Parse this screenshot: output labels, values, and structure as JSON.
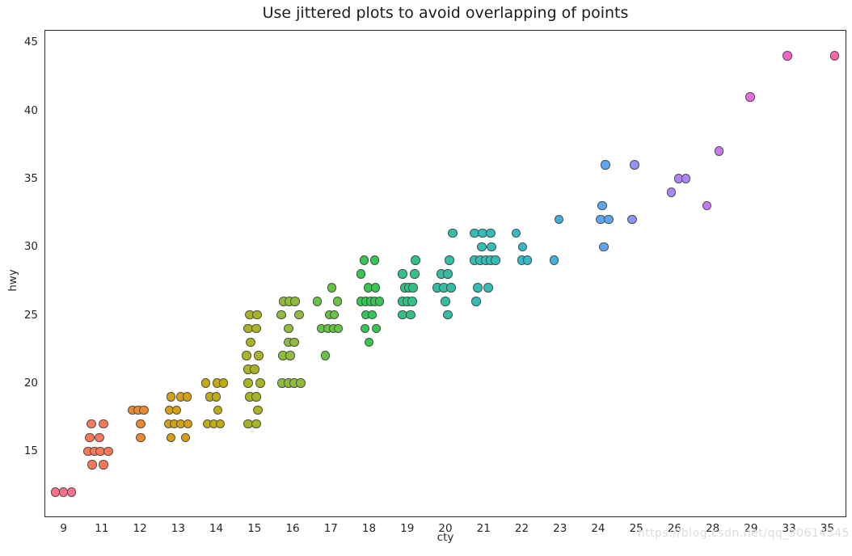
{
  "chart": {
    "title": "Use jittered plots to avoid overlapping of points",
    "xlabel": "cty",
    "ylabel": "hwy",
    "watermark": "https://blog.csdn.net/qq_30614345"
  },
  "chart_data": {
    "type": "scatter",
    "variant": "jittered-stripplot",
    "title": "Use jittered plots to avoid overlapping of points",
    "xlabel": "cty",
    "ylabel": "hwy",
    "x_categories": [
      9,
      11,
      12,
      13,
      14,
      15,
      16,
      17,
      18,
      19,
      20,
      21,
      22,
      23,
      24,
      25,
      26,
      28,
      29,
      33,
      35
    ],
    "y_ticks": [
      15,
      20,
      25,
      30,
      35,
      40,
      45
    ],
    "ylim": [
      10.1,
      45.9
    ],
    "grid": false,
    "legend": false,
    "point_note": "each point is [hwy_value, jitter_offset_px_from_category_center]",
    "series": [
      {
        "cty": 9,
        "color": "#f77189",
        "pts": [
          [
            12,
            -10
          ],
          [
            12,
            0
          ],
          [
            12,
            10
          ]
        ]
      },
      {
        "cty": 11,
        "color": "#f7795c",
        "pts": [
          [
            17,
            -13
          ],
          [
            17,
            2
          ],
          [
            16,
            -15
          ],
          [
            16,
            -3
          ],
          [
            15,
            -17
          ],
          [
            15,
            -9
          ],
          [
            15,
            -2
          ],
          [
            15,
            8
          ],
          [
            14,
            -12
          ],
          [
            14,
            2
          ]
        ]
      },
      {
        "cty": 12,
        "color": "#e78a31",
        "pts": [
          [
            18,
            -9
          ],
          [
            18,
            -2
          ],
          [
            18,
            5
          ],
          [
            17,
            1
          ],
          [
            16,
            1
          ]
        ]
      },
      {
        "cty": 13,
        "color": "#d3a118",
        "pts": [
          [
            19,
            -9
          ],
          [
            19,
            3
          ],
          [
            19,
            11
          ],
          [
            18,
            -11
          ],
          [
            18,
            -2
          ],
          [
            17,
            -12
          ],
          [
            17,
            -5
          ],
          [
            17,
            3
          ],
          [
            17,
            12
          ],
          [
            16,
            -9
          ],
          [
            16,
            9
          ]
        ]
      },
      {
        "cty": 14,
        "color": "#c0ab16",
        "pts": [
          [
            20,
            -13
          ],
          [
            20,
            1
          ],
          [
            20,
            9
          ],
          [
            19,
            -8
          ],
          [
            19,
            0
          ],
          [
            18,
            2
          ],
          [
            17,
            -11
          ],
          [
            17,
            -3
          ],
          [
            17,
            5
          ]
        ]
      },
      {
        "cty": 15,
        "color": "#aab327",
        "pts": [
          [
            25,
            -6
          ],
          [
            25,
            3
          ],
          [
            24,
            -8
          ],
          [
            24,
            2
          ],
          [
            23,
            -5
          ],
          [
            22,
            -10
          ],
          [
            22,
            5
          ],
          [
            21,
            -8
          ],
          [
            21,
            0
          ],
          [
            20,
            -8
          ],
          [
            20,
            7
          ],
          [
            19,
            -6
          ],
          [
            19,
            2
          ],
          [
            18,
            4
          ],
          [
            17,
            -8
          ],
          [
            17,
            2
          ]
        ]
      },
      {
        "cty": 16,
        "color": "#91bb3e",
        "pts": [
          [
            26,
            -11
          ],
          [
            26,
            -4
          ],
          [
            26,
            3
          ],
          [
            25,
            -14
          ],
          [
            25,
            8
          ],
          [
            24,
            -5
          ],
          [
            23,
            -5
          ],
          [
            23,
            2
          ],
          [
            22,
            -12
          ],
          [
            22,
            -3
          ],
          [
            20,
            -13
          ],
          [
            20,
            -5
          ],
          [
            20,
            2
          ],
          [
            20,
            10
          ]
        ]
      },
      {
        "cty": 17,
        "color": "#68c244",
        "pts": [
          [
            27,
            1
          ],
          [
            26,
            -17
          ],
          [
            26,
            8
          ],
          [
            25,
            -2
          ],
          [
            25,
            4
          ],
          [
            24,
            -12
          ],
          [
            24,
            -4
          ],
          [
            24,
            3
          ],
          [
            24,
            9
          ],
          [
            22,
            -7
          ]
        ]
      },
      {
        "cty": 18,
        "color": "#38c556",
        "pts": [
          [
            29,
            -6
          ],
          [
            29,
            7
          ],
          [
            28,
            -10
          ],
          [
            27,
            -1
          ],
          [
            27,
            8
          ],
          [
            26,
            -10
          ],
          [
            26,
            -4
          ],
          [
            26,
            2
          ],
          [
            26,
            7
          ],
          [
            26,
            13
          ],
          [
            25,
            -4
          ],
          [
            25,
            4
          ],
          [
            24,
            -5
          ],
          [
            24,
            9
          ],
          [
            23,
            0
          ]
        ]
      },
      {
        "cty": 19,
        "color": "#33c186",
        "pts": [
          [
            29,
            10
          ],
          [
            28,
            -6
          ],
          [
            28,
            9
          ],
          [
            27,
            -3
          ],
          [
            27,
            2
          ],
          [
            27,
            7
          ],
          [
            26,
            -6
          ],
          [
            26,
            0
          ],
          [
            26,
            6
          ],
          [
            25,
            -6
          ],
          [
            25,
            4
          ]
        ]
      },
      {
        "cty": 20,
        "color": "#34bda2",
        "pts": [
          [
            31,
            9
          ],
          [
            29,
            5
          ],
          [
            28,
            -5
          ],
          [
            28,
            3
          ],
          [
            27,
            -10
          ],
          [
            27,
            -2
          ],
          [
            27,
            7
          ],
          [
            26,
            0
          ],
          [
            25,
            3
          ]
        ]
      },
      {
        "cty": 21,
        "color": "#35bcb4",
        "pts": [
          [
            31,
            -11
          ],
          [
            31,
            -1
          ],
          [
            31,
            9
          ],
          [
            30,
            -2
          ],
          [
            30,
            10
          ],
          [
            29,
            -11
          ],
          [
            29,
            -4
          ],
          [
            29,
            3
          ],
          [
            29,
            9
          ],
          [
            29,
            15
          ],
          [
            27,
            -7
          ],
          [
            27,
            6
          ],
          [
            26,
            -9
          ]
        ]
      },
      {
        "cty": 22,
        "color": "#38b9c5",
        "pts": [
          [
            31,
            -7
          ],
          [
            30,
            1
          ],
          [
            29,
            0
          ],
          [
            29,
            7
          ]
        ]
      },
      {
        "cty": 23,
        "color": "#41b1dc",
        "pts": [
          [
            32,
            -1
          ],
          [
            29,
            -7
          ]
        ]
      },
      {
        "cty": 24,
        "color": "#5ea5f2",
        "pts": [
          [
            36,
            9
          ],
          [
            33,
            5
          ],
          [
            32,
            3
          ],
          [
            32,
            13
          ],
          [
            30,
            7
          ]
        ]
      },
      {
        "cty": 25,
        "color": "#8f93f3",
        "pts": [
          [
            36,
            -2
          ],
          [
            32,
            -5
          ]
        ]
      },
      {
        "cty": 26,
        "color": "#ac85f2",
        "pts": [
          [
            35,
            5
          ],
          [
            35,
            14
          ],
          [
            34,
            -4
          ]
        ]
      },
      {
        "cty": 28,
        "color": "#c67bf0",
        "pts": [
          [
            37,
            8
          ],
          [
            33,
            -7
          ]
        ]
      },
      {
        "cty": 29,
        "color": "#e26ee0",
        "pts": [
          [
            41,
            -1
          ]
        ]
      },
      {
        "cty": 33,
        "color": "#f263c8",
        "pts": [
          [
            44,
            -2
          ]
        ]
      },
      {
        "cty": 35,
        "color": "#f669ab",
        "pts": [
          [
            44,
            9
          ]
        ]
      }
    ]
  }
}
